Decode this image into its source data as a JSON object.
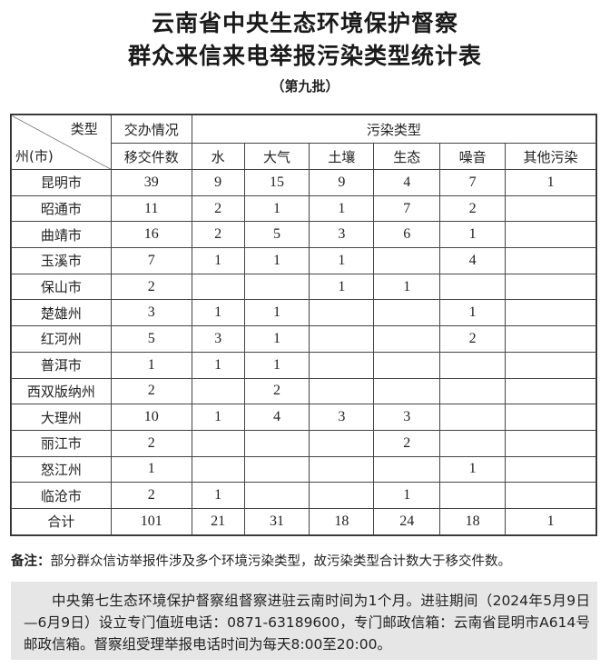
{
  "title_line1": "云南省中央生态环境保护督察",
  "title_line2": "群众来信来电举报污染类型统计表",
  "subtitle": "（第九批）",
  "header": {
    "corner_top": "类型",
    "corner_bottom": "州(市)",
    "group1": "交办情况",
    "group1_sub": "移交件数",
    "group2": "污染类型",
    "types": [
      "水",
      "大气",
      "土壤",
      "生态",
      "噪音",
      "其他污染"
    ]
  },
  "rows": [
    [
      "昆明市",
      "39",
      "9",
      "15",
      "9",
      "4",
      "7",
      "1"
    ],
    [
      "昭通市",
      "11",
      "2",
      "1",
      "1",
      "7",
      "2",
      ""
    ],
    [
      "曲靖市",
      "16",
      "2",
      "5",
      "3",
      "6",
      "1",
      ""
    ],
    [
      "玉溪市",
      "7",
      "1",
      "1",
      "1",
      "",
      "4",
      ""
    ],
    [
      "保山市",
      "2",
      "",
      "",
      "1",
      "1",
      "",
      ""
    ],
    [
      "楚雄州",
      "3",
      "1",
      "1",
      "",
      "",
      "1",
      ""
    ],
    [
      "红河州",
      "5",
      "3",
      "1",
      "",
      "",
      "2",
      ""
    ],
    [
      "普洱市",
      "1",
      "1",
      "1",
      "",
      "",
      "",
      ""
    ],
    [
      "西双版纳州",
      "2",
      "",
      "2",
      "",
      "",
      "",
      ""
    ],
    [
      "大理州",
      "10",
      "1",
      "4",
      "3",
      "3",
      "",
      ""
    ],
    [
      "丽江市",
      "2",
      "",
      "",
      "",
      "2",
      "",
      ""
    ],
    [
      "怒江州",
      "1",
      "",
      "",
      "",
      "",
      "1",
      ""
    ],
    [
      "临沧市",
      "2",
      "1",
      "",
      "",
      "1",
      "",
      ""
    ],
    [
      "合计",
      "101",
      "21",
      "31",
      "18",
      "24",
      "18",
      "1"
    ]
  ],
  "note_label": "备注：",
  "note_text": "部分群众信访举报件涉及多个环境污染类型，故污染类型合计数大于移交件数。",
  "info": "中央第七生态环境保护督察组督察进驻云南时间为1个月。进驻期间（2024年5月9日—6月9日）设立专门值班电话：0871-63189600，专门邮政信箱：云南省昆明市A614号邮政信箱。督察组受理举报电话时间为每天8:00至20:00。"
}
